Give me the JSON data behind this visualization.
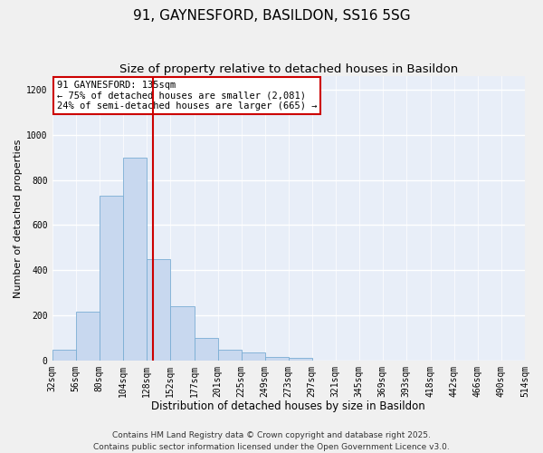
{
  "title": "91, GAYNESFORD, BASILDON, SS16 5SG",
  "subtitle": "Size of property relative to detached houses in Basildon",
  "xlabel": "Distribution of detached houses by size in Basildon",
  "ylabel": "Number of detached properties",
  "bar_color": "#c8d8ef",
  "bar_edge_color": "#7aadd4",
  "bg_color": "#f0f0f0",
  "plot_bg_color": "#e8eef8",
  "grid_color": "#ffffff",
  "bins": [
    32,
    56,
    80,
    104,
    128,
    152,
    177,
    201,
    225,
    249,
    273,
    297,
    321,
    345,
    369,
    393,
    418,
    442,
    466,
    490,
    514
  ],
  "bin_labels": [
    "32sqm",
    "56sqm",
    "80sqm",
    "104sqm",
    "128sqm",
    "152sqm",
    "177sqm",
    "201sqm",
    "225sqm",
    "249sqm",
    "273sqm",
    "297sqm",
    "321sqm",
    "345sqm",
    "369sqm",
    "393sqm",
    "418sqm",
    "442sqm",
    "466sqm",
    "490sqm",
    "514sqm"
  ],
  "counts": [
    47,
    215,
    730,
    900,
    450,
    240,
    100,
    47,
    35,
    15,
    10,
    0,
    0,
    0,
    0,
    0,
    0,
    0,
    0,
    0
  ],
  "vline_x": 135,
  "vline_color": "#cc0000",
  "annotation_line1": "91 GAYNESFORD: 135sqm",
  "annotation_line2": "← 75% of detached houses are smaller (2,081)",
  "annotation_line3": "24% of semi-detached houses are larger (665) →",
  "annotation_box_color": "#ffffff",
  "annotation_border_color": "#cc0000",
  "footer1": "Contains HM Land Registry data © Crown copyright and database right 2025.",
  "footer2": "Contains public sector information licensed under the Open Government Licence v3.0.",
  "ylim": [
    0,
    1260
  ],
  "yticks": [
    0,
    200,
    400,
    600,
    800,
    1000,
    1200
  ],
  "title_fontsize": 11,
  "subtitle_fontsize": 9.5,
  "xlabel_fontsize": 8.5,
  "ylabel_fontsize": 8,
  "tick_fontsize": 7,
  "footer_fontsize": 6.5,
  "annotation_fontsize": 7.5
}
